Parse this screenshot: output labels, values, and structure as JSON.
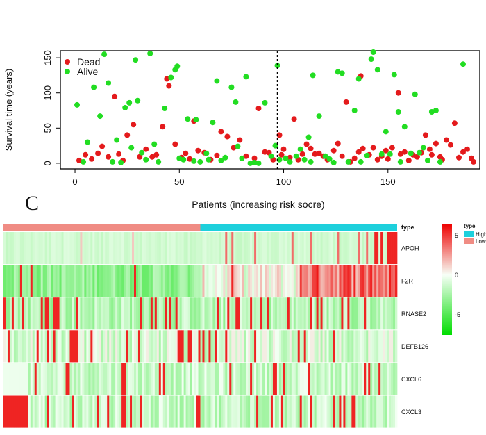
{
  "panel_label": "C",
  "chart_data": [
    {
      "type": "scatter",
      "xlabel": "Patients (increasing risk socre)",
      "ylabel": "Survival time (years)",
      "xlim": [
        -7,
        194
      ],
      "ylim": [
        -8,
        160
      ],
      "x_ticks": [
        "0",
        "50",
        "100",
        "150"
      ],
      "y_ticks": [
        "0",
        "50",
        "100",
        "150"
      ],
      "cutoff_x": 97,
      "legend": {
        "position": "top-left",
        "entries": [
          {
            "name": "Dead",
            "color": "#e41a1c"
          },
          {
            "name": "Alive",
            "color": "#22dd22"
          }
        ]
      },
      "series": [
        {
          "name": "Dead",
          "color": "#e41a1c",
          "points": [
            [
              2,
              4
            ],
            [
              5,
              12
            ],
            [
              8,
              6
            ],
            [
              11,
              14
            ],
            [
              13,
              24
            ],
            [
              16,
              9
            ],
            [
              19,
              95
            ],
            [
              21,
              13
            ],
            [
              23,
              4
            ],
            [
              25,
              40
            ],
            [
              28,
              55
            ],
            [
              31,
              9
            ],
            [
              34,
              20
            ],
            [
              37,
              9
            ],
            [
              39,
              12
            ],
            [
              42,
              52
            ],
            [
              44,
              120
            ],
            [
              45,
              110
            ],
            [
              48,
              27
            ],
            [
              51,
              8
            ],
            [
              53,
              14
            ],
            [
              55,
              6
            ],
            [
              57,
              60
            ],
            [
              59,
              18
            ],
            [
              62,
              15
            ],
            [
              65,
              5
            ],
            [
              68,
              11
            ],
            [
              70,
              45
            ],
            [
              73,
              38
            ],
            [
              76,
              22
            ],
            [
              79,
              33
            ],
            [
              82,
              10
            ],
            [
              86,
              7
            ],
            [
              88,
              78
            ],
            [
              91,
              16
            ],
            [
              93,
              15
            ],
            [
              95,
              5
            ],
            [
              98,
              40
            ],
            [
              99,
              12
            ],
            [
              100,
              20
            ],
            [
              103,
              8
            ],
            [
              105,
              63
            ],
            [
              107,
              5
            ],
            [
              109,
              13
            ],
            [
              111,
              27
            ],
            [
              113,
              21
            ],
            [
              115,
              13
            ],
            [
              117,
              14
            ],
            [
              119,
              10
            ],
            [
              121,
              5
            ],
            [
              124,
              18
            ],
            [
              126,
              28
            ],
            [
              128,
              10
            ],
            [
              130,
              87
            ],
            [
              132,
              2
            ],
            [
              134,
              7
            ],
            [
              136,
              16
            ],
            [
              138,
              21
            ],
            [
              137,
              124
            ],
            [
              141,
              12
            ],
            [
              143,
              22
            ],
            [
              145,
              5
            ],
            [
              147,
              10
            ],
            [
              149,
              18
            ],
            [
              150,
              6
            ],
            [
              152,
              22
            ],
            [
              155,
              100
            ],
            [
              156,
              13
            ],
            [
              158,
              16
            ],
            [
              160,
              4
            ],
            [
              162,
              12
            ],
            [
              164,
              9
            ],
            [
              166,
              15
            ],
            [
              168,
              40
            ],
            [
              170,
              20
            ],
            [
              171,
              12
            ],
            [
              173,
              28
            ],
            [
              175,
              9
            ],
            [
              176,
              5
            ],
            [
              178,
              33
            ],
            [
              180,
              26
            ],
            [
              182,
              57
            ],
            [
              184,
              8
            ],
            [
              186,
              16
            ],
            [
              188,
              20
            ],
            [
              190,
              7
            ],
            [
              191,
              2
            ]
          ]
        },
        {
          "name": "Alive",
          "color": "#22dd22",
          "points": [
            [
              1,
              83
            ],
            [
              4,
              2
            ],
            [
              6,
              30
            ],
            [
              9,
              108
            ],
            [
              12,
              67
            ],
            [
              14,
              155
            ],
            [
              16,
              114
            ],
            [
              18,
              2
            ],
            [
              20,
              33
            ],
            [
              22,
              1
            ],
            [
              24,
              79
            ],
            [
              26,
              86
            ],
            [
              27,
              22
            ],
            [
              29,
              147
            ],
            [
              30,
              89
            ],
            [
              32,
              15
            ],
            [
              34,
              5
            ],
            [
              36,
              156
            ],
            [
              38,
              27
            ],
            [
              40,
              2
            ],
            [
              43,
              78
            ],
            [
              46,
              122
            ],
            [
              48,
              133
            ],
            [
              49,
              138
            ],
            [
              50,
              7
            ],
            [
              52,
              5
            ],
            [
              54,
              63
            ],
            [
              57,
              3
            ],
            [
              58,
              62
            ],
            [
              60,
              2
            ],
            [
              63,
              14
            ],
            [
              64,
              5
            ],
            [
              66,
              58
            ],
            [
              68,
              117
            ],
            [
              70,
              4
            ],
            [
              72,
              8
            ],
            [
              75,
              108
            ],
            [
              77,
              87
            ],
            [
              78,
              24
            ],
            [
              80,
              7
            ],
            [
              82,
              123
            ],
            [
              84,
              0
            ],
            [
              86,
              1
            ],
            [
              88,
              0
            ],
            [
              91,
              86
            ],
            [
              94,
              10
            ],
            [
              96,
              25
            ],
            [
              97,
              139
            ],
            [
              98,
              5
            ],
            [
              101,
              7
            ],
            [
              103,
              2
            ],
            [
              106,
              10
            ],
            [
              108,
              20
            ],
            [
              110,
              5
            ],
            [
              112,
              37
            ],
            [
              113,
              2
            ],
            [
              114,
              125
            ],
            [
              117,
              67
            ],
            [
              120,
              10
            ],
            [
              122,
              6
            ],
            [
              124,
              1
            ],
            [
              126,
              130
            ],
            [
              128,
              128
            ],
            [
              131,
              2
            ],
            [
              134,
              75
            ],
            [
              136,
              120
            ],
            [
              137,
              2
            ],
            [
              140,
              11
            ],
            [
              142,
              148
            ],
            [
              143,
              158
            ],
            [
              145,
              133
            ],
            [
              147,
              13
            ],
            [
              149,
              45
            ],
            [
              151,
              13
            ],
            [
              153,
              126
            ],
            [
              155,
              73
            ],
            [
              156,
              2
            ],
            [
              158,
              52
            ],
            [
              161,
              14
            ],
            [
              163,
              98
            ],
            [
              165,
              15
            ],
            [
              167,
              22
            ],
            [
              169,
              4
            ],
            [
              171,
              73
            ],
            [
              173,
              75
            ],
            [
              175,
              2
            ],
            [
              186,
              141
            ]
          ]
        }
      ]
    },
    {
      "type": "heatmap",
      "genes": [
        "APOH",
        "F2R",
        "RNASE2",
        "DEFB126",
        "CXCL6",
        "CXCL3"
      ],
      "annotation": {
        "label": "type",
        "low_fraction": 0.5,
        "low_color": "#f08c84",
        "high_color": "#1ed0dc"
      },
      "legend": {
        "title": "type",
        "entries": [
          "High",
          "Low"
        ],
        "colors": [
          "#1ed0dc",
          "#f08c84"
        ]
      },
      "color_scale": {
        "ticks": [
          "5",
          "0",
          "-5"
        ],
        "range": [
          -7,
          7
        ],
        "low_color": "#00dd00",
        "mid_color": "#f4fff4",
        "high_color": "#ee0000"
      },
      "n_samples": 190
    }
  ]
}
